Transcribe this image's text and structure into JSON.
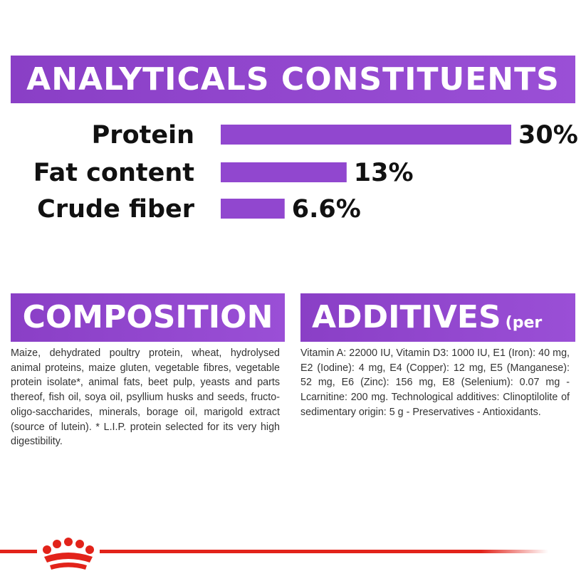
{
  "chart_data": {
    "type": "bar",
    "orientation": "horizontal",
    "title": "ANALYTICALS CONSTITUENTS",
    "categories": [
      "Protein",
      "Fat content",
      "Crude fiber"
    ],
    "values": [
      30,
      13,
      6.6
    ],
    "value_labels": [
      "30%",
      "13%",
      "6.6%"
    ],
    "color": "#9147cf"
  },
  "composition": {
    "title": "COMPOSITION",
    "text": "Maize, dehydrated poultry protein, wheat, hydrolysed animal proteins, maize gluten, vegetable fibres, vegetable protein isolate*, animal fats, beet pulp, yeasts and parts thereof, fish oil, soya oil, psyllium husks and seeds, fructo-oligo-saccharides, minerals, borage oil, marigold extract (source of lutein). * L.I.P. protein selected for its very high digestibility."
  },
  "additives": {
    "title": "ADDITIVES",
    "subtitle": "(per kg)",
    "text": "Vitamin A: 22000 IU, Vitamin D3: 1000 IU, E1 (Iron): 40 mg, E2 (Iodine): 4 mg, E4 (Copper): 12 mg, E5 (Manganese): 52 mg, E6 (Zinc): 156 mg, E8 (Selenium): 0.07 mg - Lcarnitine: 200 mg. Technological additives: Clinoptilolite of sedimentary origin: 5 g - Preservatives - Antioxidants."
  }
}
